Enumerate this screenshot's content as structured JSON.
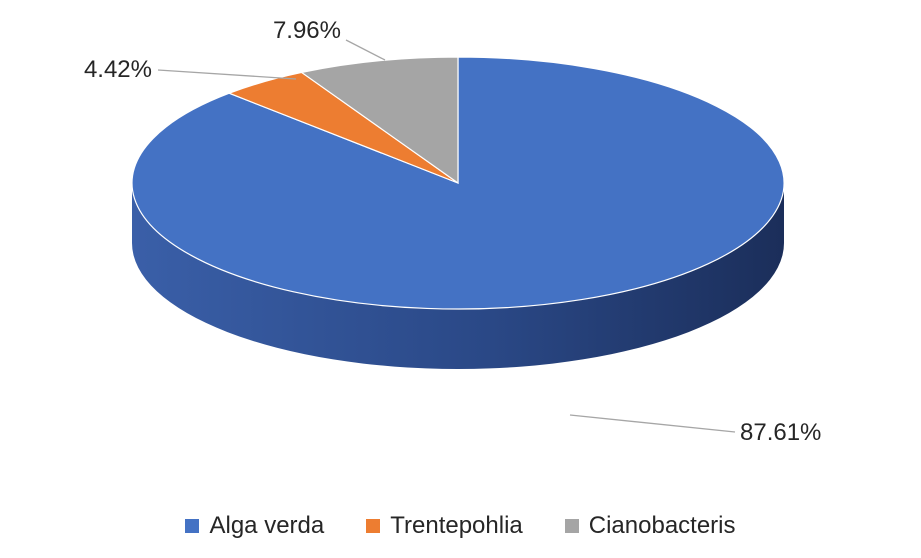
{
  "chart_data": {
    "type": "pie",
    "style": "3d",
    "categories": [
      "Alga verda",
      "Trentepohlia",
      "Cianobacteris"
    ],
    "values": [
      87.61,
      4.42,
      7.96
    ],
    "data_labels": [
      "87.61%",
      "4.42%",
      "7.96%"
    ],
    "colors": [
      "#4472C4",
      "#ED7D31",
      "#A5A5A5"
    ],
    "side_colors": [
      "#2B4A86",
      "#9C4E1D",
      "#6E6E6E"
    ],
    "legend_position": "bottom",
    "title": ""
  }
}
